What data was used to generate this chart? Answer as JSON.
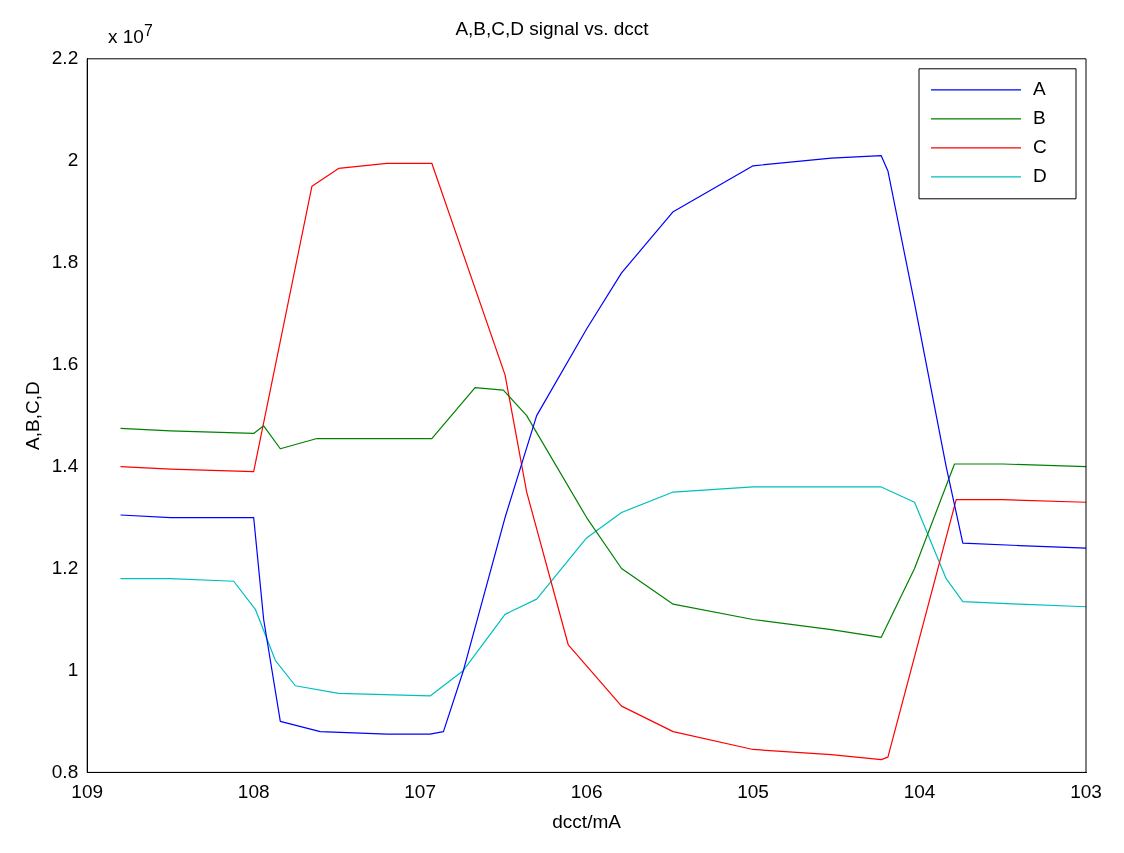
{
  "chart_data": {
    "type": "line",
    "title": "A,B,C,D signal vs. dcct",
    "xlabel": "dcct/mA",
    "ylabel": "A,B,C,D",
    "annotations": [
      "x 10$^{7}$"
    ],
    "xlim": [
      109,
      103
    ],
    "xticks": [
      109,
      108,
      107,
      106,
      105,
      104,
      103
    ],
    "ylim": [
      0.8,
      2.2
    ],
    "yticks": [
      0.8,
      1,
      1.2,
      1.4,
      1.6,
      1.8,
      2,
      2.2
    ],
    "grid": false,
    "legend": "top right",
    "marker": "none",
    "line_style": "solid",
    "series": [
      {
        "name": "A",
        "color": "#0000ff",
        "x": [
          108.8,
          108.5,
          108.2,
          108.0,
          107.94,
          107.84,
          107.6,
          107.2,
          106.94,
          106.86,
          106.74,
          106.49,
          106.3,
          106.0,
          105.79,
          105.48,
          105.0,
          104.53,
          104.23,
          104.19,
          104.03,
          103.84,
          103.74,
          103.4,
          103.0
        ],
        "values": [
          1.305,
          1.3,
          1.3,
          1.3,
          1.1,
          0.9,
          0.88,
          0.875,
          0.875,
          0.88,
          1.0,
          1.3,
          1.5,
          1.67,
          1.78,
          1.9,
          1.99,
          2.005,
          2.01,
          1.98,
          1.72,
          1.4,
          1.25,
          1.245,
          1.24
        ]
      },
      {
        "name": "B",
        "color": "#008000",
        "x": [
          108.8,
          108.5,
          108.0,
          107.94,
          107.84,
          107.62,
          107.2,
          106.93,
          106.67,
          106.5,
          106.36,
          106.0,
          105.79,
          105.48,
          105.0,
          104.53,
          104.23,
          104.03,
          103.79,
          103.5,
          103.0
        ],
        "values": [
          1.475,
          1.47,
          1.465,
          1.48,
          1.435,
          1.455,
          1.455,
          1.455,
          1.555,
          1.55,
          1.5,
          1.3,
          1.2,
          1.13,
          1.1,
          1.08,
          1.065,
          1.2,
          1.405,
          1.405,
          1.4
        ]
      },
      {
        "name": "C",
        "color": "#ff0000",
        "x": [
          108.8,
          108.5,
          108.0,
          107.65,
          107.49,
          107.2,
          106.93,
          106.49,
          106.36,
          106.11,
          105.79,
          105.48,
          105.0,
          104.53,
          104.23,
          104.19,
          103.78,
          103.5,
          103.0
        ],
        "values": [
          1.4,
          1.395,
          1.39,
          1.95,
          1.985,
          1.995,
          1.995,
          1.58,
          1.35,
          1.05,
          0.93,
          0.88,
          0.845,
          0.835,
          0.825,
          0.83,
          1.335,
          1.335,
          1.33
        ]
      },
      {
        "name": "D",
        "color": "#00bfbf",
        "x": [
          108.8,
          108.5,
          108.12,
          107.99,
          107.87,
          107.75,
          107.49,
          106.94,
          106.74,
          106.49,
          106.3,
          106.0,
          105.79,
          105.48,
          105.0,
          104.53,
          104.23,
          104.03,
          103.84,
          103.74,
          103.4,
          103.0
        ],
        "values": [
          1.18,
          1.18,
          1.175,
          1.12,
          1.02,
          0.97,
          0.955,
          0.95,
          1.0,
          1.11,
          1.14,
          1.26,
          1.31,
          1.35,
          1.36,
          1.36,
          1.36,
          1.33,
          1.18,
          1.135,
          1.13,
          1.125
        ]
      }
    ]
  }
}
